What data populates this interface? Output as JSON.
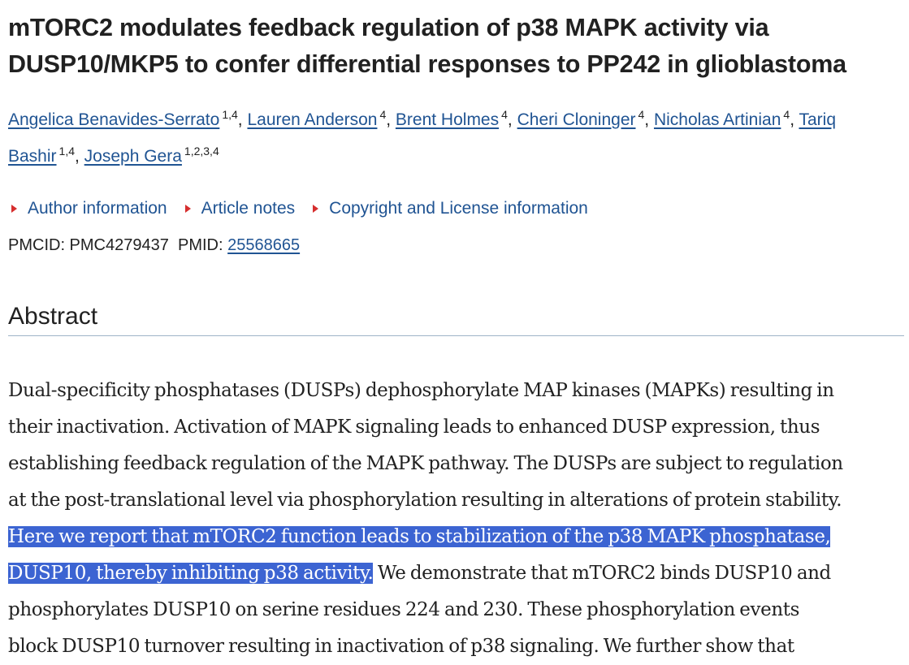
{
  "article": {
    "title_line1": "mTORC2 modulates feedback regulation of p38 MAPK activity via",
    "title_line2": "DUSP10/MKP5 to confer differential responses to PP242 in glioblastoma",
    "authors": [
      {
        "name": "Angelica Benavides-Serrato",
        "affil": "1,4"
      },
      {
        "name": "Lauren Anderson",
        "affil": "4"
      },
      {
        "name": "Brent Holmes",
        "affil": "4"
      },
      {
        "name": "Cheri Cloninger",
        "affil": "4"
      },
      {
        "name": "Nicholas Artinian",
        "affil": "4"
      },
      {
        "name_part1": "Tariq",
        "name_part2": "Bashir",
        "affil": "1,4"
      },
      {
        "name": "Joseph Gera",
        "affil": "1,2,3,4"
      }
    ],
    "accordions": [
      "Author information",
      "Article notes",
      "Copyright and License information"
    ],
    "pmcid_label": "PMCID: PMC4279437",
    "pmid_label": "PMID:",
    "pmid_value": "25568665"
  },
  "abstract": {
    "heading": "Abstract",
    "lines": [
      "Dual-specificity phosphatases (DUSPs) dephosphorylate MAP kinases (MAPKs) resulting in",
      "their inactivation. Activation of MAPK signaling leads to enhanced DUSP expression, thus",
      "establishing feedback regulation of the MAPK pathway. The DUSPs are subject to regulation",
      "at the post-translational level via phosphorylation resulting in alterations of protein stability."
    ],
    "highlighted_line1": "Here we report that mTORC2 function leads to stabilization of the p38 MAPK phosphatase,",
    "highlighted_line2": "DUSP10, thereby inhibiting p38 activity.",
    "line6_rest": " We demonstrate that mTORC2 binds DUSP10 and",
    "line7": "phosphorylates DUSP10 on serine residues 224 and 230. These phosphorylation events",
    "line8": "block DUSP10 turnover resulting in inactivation of p38 signaling. We further show that"
  }
}
